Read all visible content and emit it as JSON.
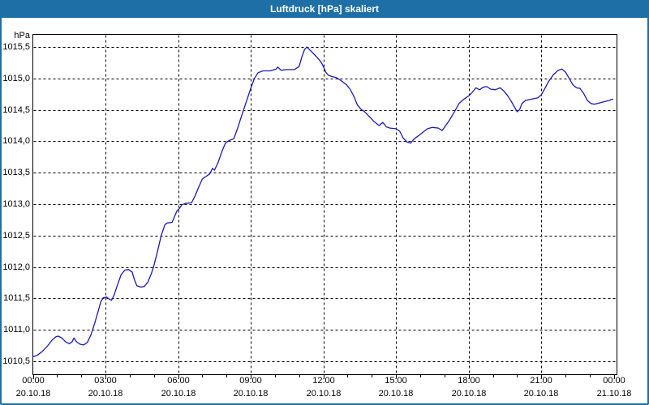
{
  "window": {
    "title": "Luftdruck [hPa] skaliert"
  },
  "colors": {
    "titlebar_bg": "#1d6fa5",
    "window_border": "#1d6fa5",
    "line": "#1a1ab8",
    "grid": "#000000",
    "text": "#000000"
  },
  "chart_data": {
    "type": "line",
    "title": "Luftdruck [hPa] skaliert",
    "xlabel": "",
    "ylabel": "hPa",
    "ylim": [
      1010.5,
      1015.5
    ],
    "xlim_hours": [
      0,
      24
    ],
    "grid": true,
    "legend": false,
    "y_ticks": [
      {
        "value": 1015.5,
        "label": "1015,5"
      },
      {
        "value": 1015.0,
        "label": "1015,0"
      },
      {
        "value": 1014.5,
        "label": "1014,5"
      },
      {
        "value": 1014.0,
        "label": "1014,0"
      },
      {
        "value": 1013.5,
        "label": "1013,5"
      },
      {
        "value": 1013.0,
        "label": "1013,0"
      },
      {
        "value": 1012.5,
        "label": "1012,5"
      },
      {
        "value": 1012.0,
        "label": "1012,0"
      },
      {
        "value": 1011.5,
        "label": "1011,5"
      },
      {
        "value": 1011.0,
        "label": "1011,0"
      },
      {
        "value": 1010.5,
        "label": "1010,5"
      }
    ],
    "x_ticks": [
      {
        "hour": 0,
        "time": "00:00",
        "date": "20.10.18",
        "gridline": false
      },
      {
        "hour": 3,
        "time": "03:00",
        "date": "20.10.18",
        "gridline": true
      },
      {
        "hour": 6,
        "time": "06:00",
        "date": "20.10.18",
        "gridline": true
      },
      {
        "hour": 9,
        "time": "09:00",
        "date": "20.10.18",
        "gridline": true
      },
      {
        "hour": 12,
        "time": "12:00",
        "date": "20.10.18",
        "gridline": true
      },
      {
        "hour": 15,
        "time": "15:00",
        "date": "20.10.18",
        "gridline": true
      },
      {
        "hour": 18,
        "time": "18:00",
        "date": "20.10.18",
        "gridline": true
      },
      {
        "hour": 21,
        "time": "21:00",
        "date": "20.10.18",
        "gridline": true
      },
      {
        "hour": 24,
        "time": "00:00",
        "date": "21.10.18",
        "gridline": false
      }
    ],
    "minor_tick_every_hours": 1,
    "series": [
      {
        "name": "Luftdruck",
        "color": "#1a1ab8",
        "points": [
          [
            0.0,
            1010.57
          ],
          [
            0.2,
            1010.6
          ],
          [
            0.4,
            1010.66
          ],
          [
            0.6,
            1010.74
          ],
          [
            0.8,
            1010.84
          ],
          [
            0.95,
            1010.89
          ],
          [
            1.05,
            1010.9
          ],
          [
            1.2,
            1010.87
          ],
          [
            1.35,
            1010.81
          ],
          [
            1.5,
            1010.78
          ],
          [
            1.62,
            1010.81
          ],
          [
            1.7,
            1010.87
          ],
          [
            1.8,
            1010.81
          ],
          [
            1.95,
            1010.77
          ],
          [
            2.1,
            1010.76
          ],
          [
            2.25,
            1010.8
          ],
          [
            2.4,
            1010.92
          ],
          [
            2.55,
            1011.1
          ],
          [
            2.7,
            1011.3
          ],
          [
            2.8,
            1011.44
          ],
          [
            2.9,
            1011.51
          ],
          [
            3.05,
            1011.52
          ],
          [
            3.15,
            1011.49
          ],
          [
            3.25,
            1011.47
          ],
          [
            3.35,
            1011.55
          ],
          [
            3.5,
            1011.72
          ],
          [
            3.65,
            1011.88
          ],
          [
            3.8,
            1011.95
          ],
          [
            3.95,
            1011.96
          ],
          [
            4.1,
            1011.92
          ],
          [
            4.2,
            1011.79
          ],
          [
            4.3,
            1011.7
          ],
          [
            4.45,
            1011.68
          ],
          [
            4.6,
            1011.69
          ],
          [
            4.75,
            1011.76
          ],
          [
            4.9,
            1011.9
          ],
          [
            5.0,
            1012.02
          ],
          [
            5.15,
            1012.25
          ],
          [
            5.3,
            1012.5
          ],
          [
            5.45,
            1012.67
          ],
          [
            5.55,
            1012.7
          ],
          [
            5.75,
            1012.71
          ],
          [
            5.85,
            1012.8
          ],
          [
            5.95,
            1012.89
          ],
          [
            6.05,
            1012.93
          ],
          [
            6.15,
            1012.99
          ],
          [
            6.3,
            1013.01
          ],
          [
            6.55,
            1013.02
          ],
          [
            6.7,
            1013.13
          ],
          [
            6.85,
            1013.27
          ],
          [
            7.0,
            1013.4
          ],
          [
            7.15,
            1013.44
          ],
          [
            7.3,
            1013.48
          ],
          [
            7.42,
            1013.57
          ],
          [
            7.5,
            1013.54
          ],
          [
            7.65,
            1013.66
          ],
          [
            7.8,
            1013.83
          ],
          [
            7.95,
            1013.97
          ],
          [
            8.1,
            1014.01
          ],
          [
            8.3,
            1014.04
          ],
          [
            8.45,
            1014.2
          ],
          [
            8.6,
            1014.38
          ],
          [
            8.8,
            1014.61
          ],
          [
            9.0,
            1014.84
          ],
          [
            9.15,
            1015.0
          ],
          [
            9.3,
            1015.09
          ],
          [
            9.5,
            1015.12
          ],
          [
            9.8,
            1015.12
          ],
          [
            10.05,
            1015.15
          ],
          [
            10.12,
            1015.18
          ],
          [
            10.25,
            1015.13
          ],
          [
            10.5,
            1015.14
          ],
          [
            10.8,
            1015.14
          ],
          [
            11.0,
            1015.19
          ],
          [
            11.1,
            1015.33
          ],
          [
            11.22,
            1015.46
          ],
          [
            11.32,
            1015.5
          ],
          [
            11.45,
            1015.45
          ],
          [
            11.6,
            1015.39
          ],
          [
            11.75,
            1015.33
          ],
          [
            11.9,
            1015.26
          ],
          [
            12.0,
            1015.19
          ],
          [
            12.1,
            1015.1
          ],
          [
            12.2,
            1015.05
          ],
          [
            12.35,
            1015.03
          ],
          [
            12.55,
            1015.01
          ],
          [
            12.75,
            1014.96
          ],
          [
            12.95,
            1014.9
          ],
          [
            13.1,
            1014.83
          ],
          [
            13.25,
            1014.72
          ],
          [
            13.4,
            1014.58
          ],
          [
            13.55,
            1014.51
          ],
          [
            13.7,
            1014.47
          ],
          [
            13.9,
            1014.39
          ],
          [
            14.1,
            1014.31
          ],
          [
            14.3,
            1014.25
          ],
          [
            14.45,
            1014.3
          ],
          [
            14.6,
            1014.23
          ],
          [
            14.75,
            1014.21
          ],
          [
            15.0,
            1014.2
          ],
          [
            15.15,
            1014.16
          ],
          [
            15.3,
            1014.05
          ],
          [
            15.45,
            1013.99
          ],
          [
            15.6,
            1013.97
          ],
          [
            15.75,
            1014.04
          ],
          [
            15.9,
            1014.08
          ],
          [
            16.1,
            1014.14
          ],
          [
            16.3,
            1014.2
          ],
          [
            16.5,
            1014.22
          ],
          [
            16.75,
            1014.21
          ],
          [
            16.9,
            1014.17
          ],
          [
            17.05,
            1014.25
          ],
          [
            17.2,
            1014.33
          ],
          [
            17.4,
            1014.46
          ],
          [
            17.6,
            1014.6
          ],
          [
            17.8,
            1014.67
          ],
          [
            18.0,
            1014.72
          ],
          [
            18.15,
            1014.78
          ],
          [
            18.3,
            1014.85
          ],
          [
            18.45,
            1014.82
          ],
          [
            18.6,
            1014.86
          ],
          [
            18.75,
            1014.87
          ],
          [
            18.9,
            1014.83
          ],
          [
            19.1,
            1014.82
          ],
          [
            19.3,
            1014.85
          ],
          [
            19.45,
            1014.8
          ],
          [
            19.6,
            1014.73
          ],
          [
            19.75,
            1014.64
          ],
          [
            19.9,
            1014.54
          ],
          [
            20.0,
            1014.47
          ],
          [
            20.1,
            1014.5
          ],
          [
            20.2,
            1014.6
          ],
          [
            20.35,
            1014.65
          ],
          [
            20.6,
            1014.67
          ],
          [
            20.85,
            1014.69
          ],
          [
            21.0,
            1014.74
          ],
          [
            21.15,
            1014.84
          ],
          [
            21.3,
            1014.95
          ],
          [
            21.5,
            1015.06
          ],
          [
            21.7,
            1015.13
          ],
          [
            21.85,
            1015.15
          ],
          [
            22.0,
            1015.1
          ],
          [
            22.15,
            1015.0
          ],
          [
            22.3,
            1014.9
          ],
          [
            22.45,
            1014.85
          ],
          [
            22.6,
            1014.84
          ],
          [
            22.75,
            1014.76
          ],
          [
            22.9,
            1014.65
          ],
          [
            23.05,
            1014.6
          ],
          [
            23.2,
            1014.59
          ],
          [
            23.4,
            1014.61
          ],
          [
            23.6,
            1014.63
          ],
          [
            23.8,
            1014.65
          ],
          [
            23.95,
            1014.67
          ]
        ]
      }
    ]
  }
}
